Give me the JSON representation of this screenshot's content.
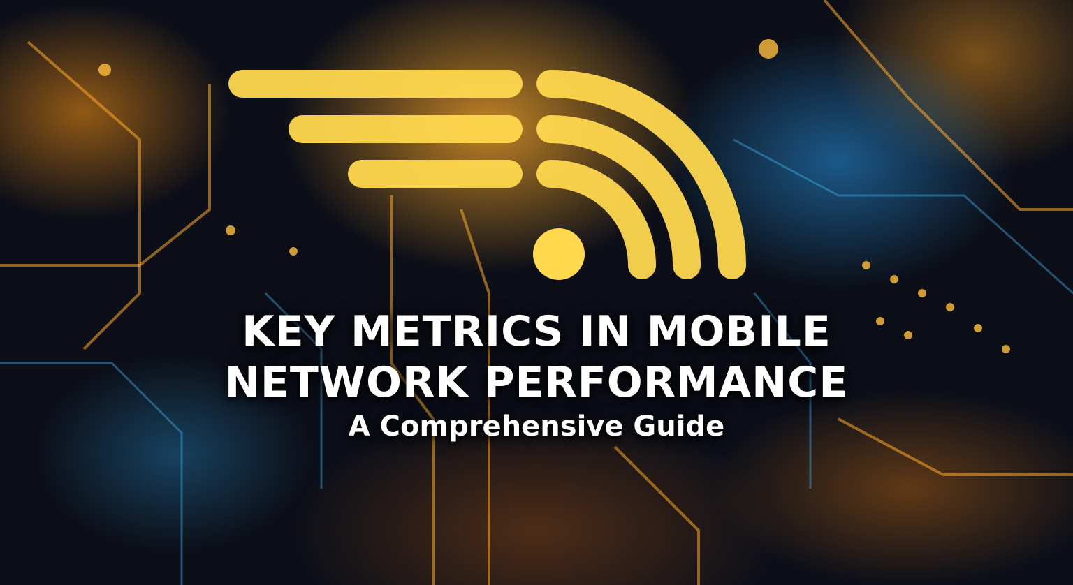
{
  "banner": {
    "title_line1": "KEY METRICS IN MOBILE",
    "title_line2": "NETWORK PERFORMANCE",
    "subtitle": "A Comprehensive Guide",
    "icon": "wifi-signal-icon",
    "colors": {
      "icon": "#FFD84E",
      "text": "#FFFFFF",
      "glow_orange": "#FFAA28",
      "glow_blue": "#2896E6"
    }
  }
}
